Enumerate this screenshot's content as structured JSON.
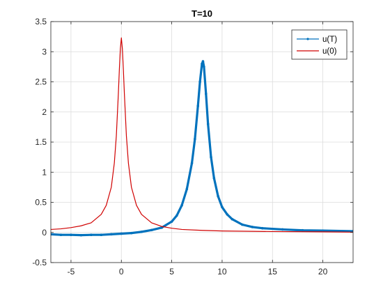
{
  "chart_data": {
    "type": "line",
    "title": "T=10",
    "xlabel": "",
    "ylabel": "",
    "xlim": [
      -7,
      23
    ],
    "ylim": [
      -0.5,
      3.5
    ],
    "xticks": [
      -5,
      0,
      5,
      10,
      15,
      20
    ],
    "yticks": [
      -0.5,
      0,
      0.5,
      1,
      1.5,
      2,
      2.5,
      3,
      3.5
    ],
    "xtick_labels": [
      "-5",
      "0",
      "5",
      "10",
      "15",
      "20"
    ],
    "ytick_labels": [
      "-0.5",
      "0",
      "0.5",
      "1",
      "1.5",
      "2",
      "2.5",
      "3",
      "3.5"
    ],
    "grid": true,
    "legend_position": "top-right",
    "series": [
      {
        "name": "u(T)",
        "color": "#0072BD",
        "marker": "point",
        "x": [
          -7,
          -6,
          -5,
          -4,
          -3,
          -2,
          -1,
          0,
          1,
          2,
          3,
          4,
          5,
          5.5,
          6,
          6.5,
          7,
          7.3,
          7.6,
          7.8,
          8,
          8.1,
          8.2,
          8.4,
          8.6,
          8.9,
          9.2,
          9.6,
          10,
          10.5,
          11,
          12,
          13,
          14,
          16,
          18,
          20,
          23
        ],
        "y": [
          -0.03,
          -0.04,
          -0.04,
          -0.045,
          -0.04,
          -0.04,
          -0.03,
          -0.02,
          -0.01,
          0.01,
          0.04,
          0.08,
          0.18,
          0.28,
          0.45,
          0.72,
          1.15,
          1.55,
          2.1,
          2.5,
          2.8,
          2.84,
          2.75,
          2.3,
          1.8,
          1.25,
          0.9,
          0.6,
          0.42,
          0.3,
          0.22,
          0.13,
          0.09,
          0.07,
          0.05,
          0.035,
          0.03,
          0.02
        ]
      },
      {
        "name": "u(0)",
        "color": "#D00000",
        "marker": "none",
        "x": [
          -7,
          -6,
          -5,
          -4,
          -3,
          -2,
          -1.5,
          -1,
          -0.7,
          -0.5,
          -0.3,
          -0.2,
          -0.1,
          0,
          0.1,
          0.2,
          0.3,
          0.5,
          0.7,
          1,
          1.5,
          2,
          3,
          4,
          5,
          6,
          8,
          10,
          15,
          20,
          23
        ],
        "y": [
          0.05,
          0.06,
          0.08,
          0.11,
          0.16,
          0.3,
          0.45,
          0.75,
          1.15,
          1.6,
          2.3,
          2.7,
          3.05,
          3.23,
          3.05,
          2.7,
          2.3,
          1.6,
          1.15,
          0.75,
          0.45,
          0.3,
          0.16,
          0.1,
          0.07,
          0.05,
          0.035,
          0.025,
          0.015,
          0.01,
          0.005
        ]
      }
    ]
  }
}
